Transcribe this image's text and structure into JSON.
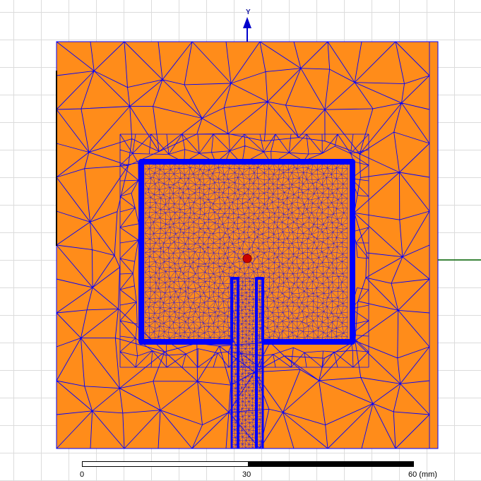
{
  "viewport": {
    "background": "#ffffff",
    "grid_color": "#dcdcdc"
  },
  "model": {
    "substrate_color": "#ff8c1a",
    "mesh_color": "#0000ff",
    "port_marker_color": "#cc0000",
    "x_axis_color": "#006400",
    "y_axis_color": "#0000cc"
  },
  "axes": {
    "y_label": "Y"
  },
  "scale_bar": {
    "start_label": "0",
    "mid_label": "30",
    "end_label": "60 (mm)"
  }
}
